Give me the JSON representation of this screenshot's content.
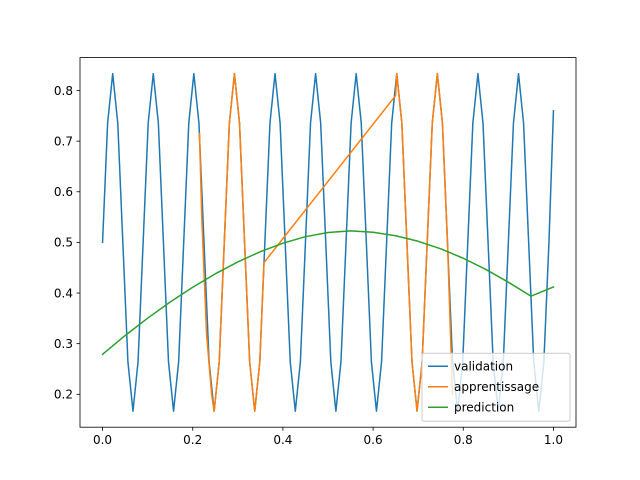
{
  "chart_data": {
    "type": "line",
    "xlim": [
      -0.05,
      1.05
    ],
    "ylim": [
      0.135,
      0.865
    ],
    "x_ticks": [
      {
        "value": 0.0,
        "label": "0.0"
      },
      {
        "value": 0.2,
        "label": "0.2"
      },
      {
        "value": 0.4,
        "label": "0.4"
      },
      {
        "value": 0.6,
        "label": "0.6"
      },
      {
        "value": 0.8,
        "label": "0.8"
      },
      {
        "value": 1.0,
        "label": "1.0"
      }
    ],
    "y_ticks": [
      {
        "value": 0.2,
        "label": "0.2"
      },
      {
        "value": 0.3,
        "label": "0.3"
      },
      {
        "value": 0.4,
        "label": "0.4"
      },
      {
        "value": 0.5,
        "label": "0.5"
      },
      {
        "value": 0.6,
        "label": "0.6"
      },
      {
        "value": 0.7,
        "label": "0.7"
      },
      {
        "value": 0.8,
        "label": "0.8"
      }
    ],
    "grid": false,
    "legend_position": "lower-right",
    "series": [
      {
        "name": "validation",
        "color": "#1f77b4",
        "x": [
          0.0,
          0.01125,
          0.0225,
          0.03375,
          0.045,
          0.05625,
          0.0675,
          0.07875,
          0.09,
          0.10125,
          0.1125,
          0.12375,
          0.135,
          0.14625,
          0.1575,
          0.16875,
          0.18,
          0.19125,
          0.2025,
          0.21375,
          0.225,
          0.23625,
          0.2475,
          0.25875,
          0.27,
          0.28125,
          0.2925,
          0.30375,
          0.315,
          0.32625,
          0.3375,
          0.34875,
          0.36,
          0.37125,
          0.3825,
          0.39375,
          0.405,
          0.41625,
          0.4275,
          0.43875,
          0.45,
          0.46125,
          0.4725,
          0.48375,
          0.495,
          0.50625,
          0.5175,
          0.52875,
          0.54,
          0.55125,
          0.5625,
          0.57375,
          0.585,
          0.59625,
          0.6075,
          0.61875,
          0.63,
          0.64125,
          0.6525,
          0.66375,
          0.675,
          0.68625,
          0.6975,
          0.70875,
          0.72,
          0.73125,
          0.7425,
          0.75375,
          0.765,
          0.77625,
          0.7875,
          0.79875,
          0.81,
          0.82125,
          0.8325,
          0.84375,
          0.855,
          0.86625,
          0.8775,
          0.88875,
          0.9,
          0.91125,
          0.9225,
          0.93375,
          0.945,
          0.95625,
          0.9675,
          0.97875,
          0.99,
          1.0
        ],
        "y": [
          0.5,
          0.7357,
          0.8333,
          0.7357,
          0.5,
          0.2643,
          0.1667,
          0.2643,
          0.5,
          0.7357,
          0.8333,
          0.7357,
          0.5,
          0.2643,
          0.1667,
          0.2643,
          0.5,
          0.7357,
          0.8333,
          0.7357,
          0.5,
          0.2643,
          0.1667,
          0.2643,
          0.5,
          0.7357,
          0.8333,
          0.7357,
          0.5,
          0.2643,
          0.1667,
          0.2643,
          0.5,
          0.7357,
          0.8333,
          0.7357,
          0.5,
          0.2643,
          0.1667,
          0.2643,
          0.5,
          0.7357,
          0.8333,
          0.7357,
          0.5,
          0.2643,
          0.1667,
          0.2643,
          0.5,
          0.7357,
          0.8333,
          0.7357,
          0.5,
          0.2643,
          0.1667,
          0.2643,
          0.5,
          0.7357,
          0.8333,
          0.7357,
          0.5,
          0.2643,
          0.1667,
          0.2643,
          0.5,
          0.7357,
          0.8333,
          0.7357,
          0.5,
          0.2643,
          0.1667,
          0.2643,
          0.5,
          0.7357,
          0.8333,
          0.7357,
          0.5,
          0.2643,
          0.1667,
          0.2643,
          0.5,
          0.7357,
          0.8333,
          0.7357,
          0.5,
          0.2643,
          0.1667,
          0.2643,
          0.5,
          0.76
        ]
      },
      {
        "name": "apprentissage",
        "color": "#ff7f0e",
        "x": [
          0.215,
          0.22,
          0.2306,
          0.2419,
          0.2475,
          0.2588,
          0.27,
          0.2813,
          0.2925,
          0.3038,
          0.315,
          0.3263,
          0.3375,
          0.3488,
          0.358,
          0.65,
          0.6525,
          0.6638,
          0.675,
          0.6863,
          0.6975,
          0.7088,
          0.72,
          0.7313,
          0.7425,
          0.7538,
          0.765,
          0.776
        ],
        "y": [
          0.715,
          0.55,
          0.32,
          0.2,
          0.1667,
          0.2643,
          0.5,
          0.7357,
          0.8333,
          0.7357,
          0.5,
          0.2643,
          0.1667,
          0.2643,
          0.46,
          0.79,
          0.8333,
          0.7357,
          0.5,
          0.2643,
          0.1667,
          0.2643,
          0.5,
          0.7357,
          0.8333,
          0.7357,
          0.5,
          0.2
        ]
      },
      {
        "name": "prediction",
        "color": "#2ca02c",
        "x": [
          0.0,
          0.05,
          0.1,
          0.15,
          0.2,
          0.25,
          0.3,
          0.35,
          0.4,
          0.45,
          0.5,
          0.55,
          0.6,
          0.65,
          0.7,
          0.75,
          0.8,
          0.85,
          0.9,
          0.95,
          1.0
        ],
        "y": [
          0.279,
          0.3159,
          0.3503,
          0.3822,
          0.4114,
          0.4379,
          0.4614,
          0.4817,
          0.4985,
          0.5113,
          0.5196,
          0.5228,
          0.5201,
          0.5132,
          0.5022,
          0.4874,
          0.4687,
          0.4466,
          0.4214,
          0.3938,
          0.412
        ]
      }
    ]
  }
}
